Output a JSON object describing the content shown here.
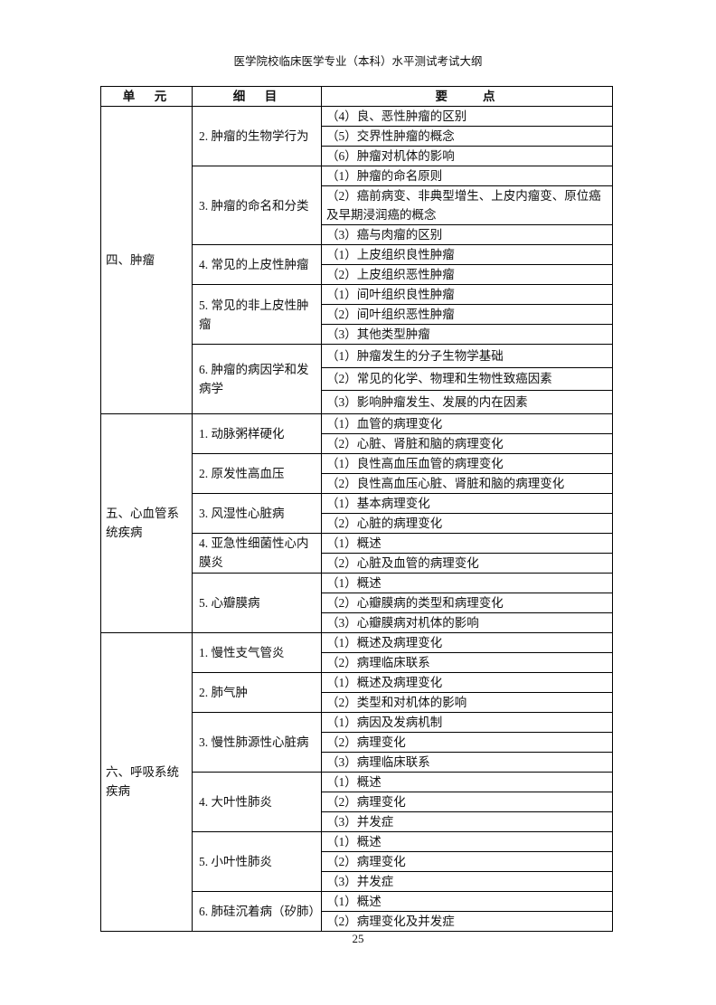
{
  "header": "医学院校临床医学专业（本科）水平测试考试大纲",
  "columns": [
    "单　元",
    "细　目",
    "要　　点"
  ],
  "units": [
    {
      "name": "四、肿瘤",
      "items": [
        {
          "title": "2. 肿瘤的生物学行为",
          "points": [
            "（4）良、恶性肿瘤的区别",
            "（5）交界性肿瘤的概念",
            "（6）肿瘤对机体的影响"
          ]
        },
        {
          "title": "3. 肿瘤的命名和分类",
          "points": [
            "（1）肿瘤的命名原则",
            "（2）癌前病变、非典型增生、上皮内瘤变、原位癌及早期浸润癌的概念",
            "（3）癌与肉瘤的区别"
          ]
        },
        {
          "title": "4. 常见的上皮性肿瘤",
          "points": [
            "（1）上皮组织良性肿瘤",
            "（2）上皮组织恶性肿瘤"
          ]
        },
        {
          "title": "5. 常见的非上皮性肿瘤",
          "points": [
            "（1）间叶组织良性肿瘤",
            "（2）间叶组织恶性肿瘤",
            "（3）其他类型肿瘤"
          ]
        },
        {
          "title": "6. 肿瘤的病因学和发病学",
          "points": [
            "（1）肿瘤发生的分子生物学基础",
            "（2）常见的化学、物理和生物性致癌因素",
            "（3）影响肿瘤发生、发展的内在因素"
          ]
        }
      ]
    },
    {
      "name": "五、心血管系统疾病",
      "items": [
        {
          "title": "1. 动脉粥样硬化",
          "points": [
            "（1）血管的病理变化",
            "（2）心脏、肾脏和脑的病理变化"
          ]
        },
        {
          "title": "2. 原发性高血压",
          "points": [
            "（1）良性高血压血管的病理变化",
            "（2）良性高血压心脏、肾脏和脑的病理变化"
          ]
        },
        {
          "title": "3. 风湿性心脏病",
          "points": [
            "（1）基本病理变化",
            "（2）心脏的病理变化"
          ]
        },
        {
          "title": "4. 亚急性细菌性心内膜炎",
          "points": [
            "（1）概述",
            "（2）心脏及血管的病理变化"
          ]
        },
        {
          "title": "5. 心瓣膜病",
          "points": [
            "（1）概述",
            "（2）心瓣膜病的类型和病理变化",
            "（3）心瓣膜病对机体的影响"
          ]
        }
      ]
    },
    {
      "name": "六、呼吸系统疾病",
      "items": [
        {
          "title": "1. 慢性支气管炎",
          "points": [
            "（1）概述及病理变化",
            "（2）病理临床联系"
          ]
        },
        {
          "title": "2. 肺气肿",
          "points": [
            "（1）概述及病理变化",
            "（2）类型和对机体的影响"
          ]
        },
        {
          "title": "3. 慢性肺源性心脏病",
          "points": [
            "（1）病因及发病机制",
            "（2）病理变化",
            "（3）病理临床联系"
          ]
        },
        {
          "title": "4. 大叶性肺炎",
          "points": [
            "（1）概述",
            "（2）病理变化",
            "（3）并发症"
          ]
        },
        {
          "title": "5. 小叶性肺炎",
          "points": [
            "（1）概述",
            "（2）病理变化",
            "（3）并发症"
          ]
        },
        {
          "title": "6. 肺硅沉着病（矽肺）",
          "points": [
            "（1）概述",
            "（2）病理变化及并发症"
          ]
        }
      ]
    }
  ],
  "page_number": "25"
}
